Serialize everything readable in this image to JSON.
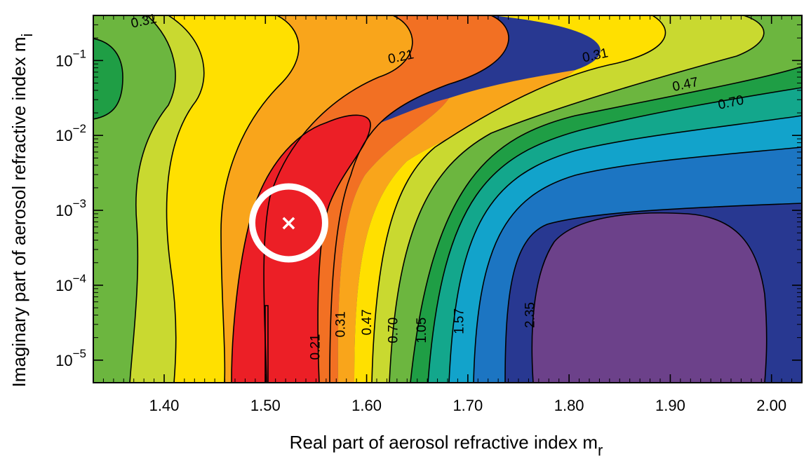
{
  "chart_data": {
    "type": "contour",
    "title": "",
    "xlabel": "Real part of aerosol refractive index m",
    "xlabel_sub": "r",
    "ylabel": "Imaginary part of aerosol refractive index m",
    "ylabel_sub": "i",
    "xlim": [
      1.33,
      2.03
    ],
    "ylim": [
      5e-06,
      0.4
    ],
    "yscale": "log",
    "x_ticks": [
      "1.40",
      "1.50",
      "1.60",
      "1.70",
      "1.80",
      "1.90",
      "2.00"
    ],
    "x_tick_values": [
      1.4,
      1.5,
      1.6,
      1.7,
      1.8,
      1.9,
      2.0
    ],
    "y_ticks": [
      {
        "base": "10",
        "exp": "−5",
        "value": 1e-05
      },
      {
        "base": "10",
        "exp": "−4",
        "value": 0.0001
      },
      {
        "base": "10",
        "exp": "−3",
        "value": 0.001
      },
      {
        "base": "10",
        "exp": "−2",
        "value": 0.01
      },
      {
        "base": "10",
        "exp": "−1",
        "value": 0.1
      }
    ],
    "contour_levels": [
      "0.21",
      "0.31",
      "0.47",
      "0.70",
      "1.05",
      "1.57",
      "2.35"
    ],
    "contour_labels": [
      {
        "text": "0.21",
        "x": 1.55,
        "y": 1.5e-05,
        "rotate": true
      },
      {
        "text": "0.31",
        "x": 1.575,
        "y": 3e-05,
        "rotate": true
      },
      {
        "text": "0.47",
        "x": 1.601,
        "y": 3.2e-05,
        "rotate": true
      },
      {
        "text": "0.70",
        "x": 1.627,
        "y": 2.5e-05,
        "rotate": true
      },
      {
        "text": "1.05",
        "x": 1.655,
        "y": 2.5e-05,
        "rotate": true
      },
      {
        "text": "1.57",
        "x": 1.692,
        "y": 3.3e-05,
        "rotate": true
      },
      {
        "text": "2.35",
        "x": 1.762,
        "y": 4e-05,
        "rotate": true
      },
      {
        "text": "0.31",
        "x": 1.38,
        "y": 0.33,
        "rotate": false
      },
      {
        "text": "0.21",
        "x": 1.634,
        "y": 0.11,
        "rotate": false
      },
      {
        "text": "0.31",
        "x": 1.826,
        "y": 0.115,
        "rotate": false
      },
      {
        "text": "0.47",
        "x": 1.915,
        "y": 0.047,
        "rotate": false
      },
      {
        "text": "0.70",
        "x": 1.96,
        "y": 0.027,
        "rotate": false
      }
    ],
    "band_colors": [
      "#1f9e45",
      "#6cb63f",
      "#c9d930",
      "#ffe000",
      "#f9a51b",
      "#f27023",
      "#ec1f26",
      "#f27023",
      "#f9a51b",
      "#ffe000",
      "#c9d930",
      "#6cb63f",
      "#1f9e45",
      "#13a78c",
      "#12a3cb",
      "#1c75c2",
      "#283891",
      "#6c418a"
    ],
    "marker": {
      "x": 1.523,
      "y": 0.00068,
      "symbol": "×"
    }
  }
}
